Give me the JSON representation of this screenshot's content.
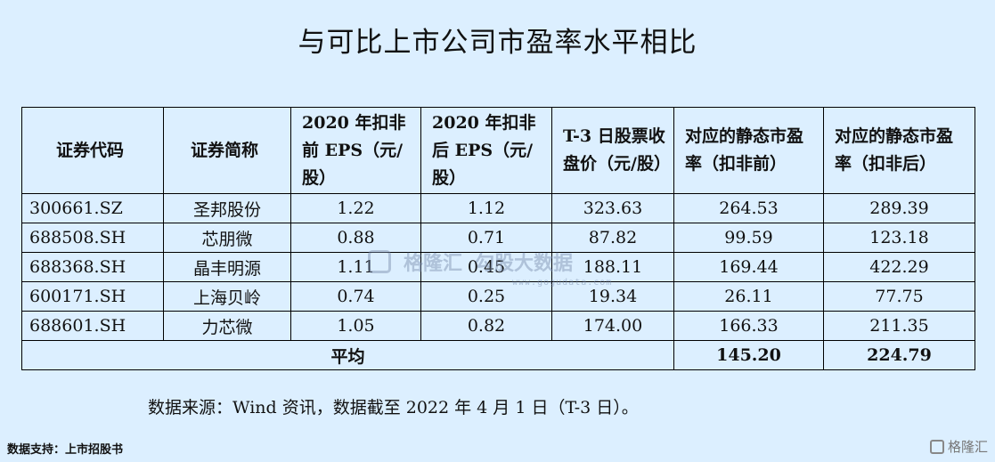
{
  "title": "与可比上市公司市盈率水平相比",
  "table": {
    "headers": [
      "证券代码",
      "证券简称",
      "2020 年扣非前 EPS（元/股）",
      "2020 年扣非后 EPS（元/股）",
      "T-3 日股票收盘价（元/股）",
      "对应的静态市盈率（扣非前）",
      "对应的静态市盈率（扣非后）"
    ],
    "rows": [
      {
        "code": "300661.SZ",
        "name": "圣邦股份",
        "eps_pre": "1.22",
        "eps_post": "1.12",
        "price": "323.63",
        "pe_pre": "264.53",
        "pe_post": "289.39"
      },
      {
        "code": "688508.SH",
        "name": "芯朋微",
        "eps_pre": "0.88",
        "eps_post": "0.71",
        "price": "87.82",
        "pe_pre": "99.59",
        "pe_post": "123.18"
      },
      {
        "code": "688368.SH",
        "name": "晶丰明源",
        "eps_pre": "1.11",
        "eps_post": "0.45",
        "price": "188.11",
        "pe_pre": "169.44",
        "pe_post": "422.29"
      },
      {
        "code": "600171.SH",
        "name": "上海贝岭",
        "eps_pre": "0.74",
        "eps_post": "0.25",
        "price": "19.34",
        "pe_pre": "26.11",
        "pe_post": "77.75"
      },
      {
        "code": "688601.SH",
        "name": "力芯微",
        "eps_pre": "1.05",
        "eps_post": "0.82",
        "price": "174.00",
        "pe_pre": "166.33",
        "pe_post": "211.35"
      }
    ],
    "average": {
      "label": "平均",
      "pe_pre": "145.20",
      "pe_post": "224.79"
    }
  },
  "source_note": "数据来源：Wind 资讯，数据截至 2022 年 4 月 1 日（T-3 日）。",
  "support_note": "数据支持：上市招股书",
  "watermark": {
    "brand": "格隆汇",
    "partner": "勾股大数据",
    "url": "www.gogudata.com"
  },
  "corner_logo": "格隆汇"
}
